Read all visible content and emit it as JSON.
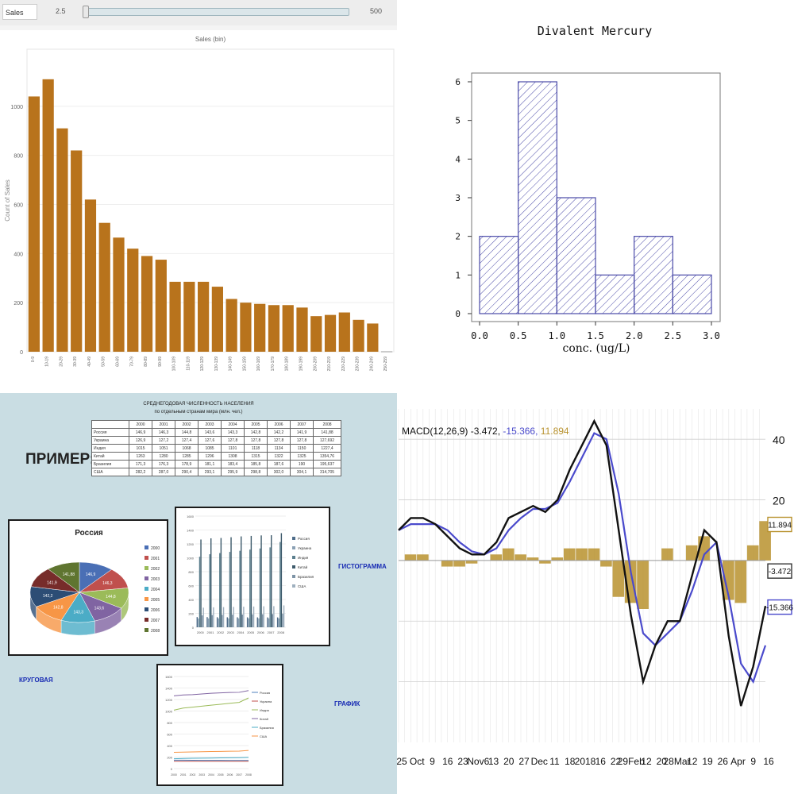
{
  "histogram_toolbar": {
    "field_value": "Sales",
    "range_min": "2.5",
    "range_max": "500"
  },
  "q3": {
    "title_line1": "СРЕДНЕГОДОВАЯ ЧИСЛЕННОСТЬ НАСЕЛЕНИЯ",
    "title_line2": "по отдельным странам мира (млн. чел.)",
    "primer": "ПРИМЕР:",
    "label_histogram": "ГИСТОГРАММА",
    "label_pie": "КРУГОВАЯ",
    "label_graph": "ГРАФИК",
    "table": {
      "header": [
        "",
        "2000",
        "2001",
        "2002",
        "2003",
        "2004",
        "2005",
        "2006",
        "2007",
        "2008"
      ],
      "rows": [
        [
          "Россия",
          "146,9",
          "146,3",
          "144,8",
          "143,6",
          "143,3",
          "142,8",
          "142,2",
          "141,9",
          "141,88"
        ],
        [
          "Украина",
          "126,9",
          "127,2",
          "127,4",
          "127,6",
          "127,8",
          "127,8",
          "127,8",
          "127,8",
          "127,692"
        ],
        [
          "Индия",
          "1015",
          "1051",
          "1068",
          "1085",
          "1101",
          "1118",
          "1134",
          "1150",
          "1227,4"
        ],
        [
          "Китай",
          "1263",
          "1280",
          "1285",
          "1296",
          "1308",
          "1315",
          "1322",
          "1325",
          "1354,76"
        ],
        [
          "Бразилия",
          "171,3",
          "176,3",
          "178,9",
          "181,1",
          "183,4",
          "185,8",
          "187,6",
          "190",
          "195,637"
        ],
        [
          "США",
          "282,2",
          "287,0",
          "290,4",
          "293,1",
          "295,9",
          "298,8",
          "302,0",
          "304,1",
          "314,705"
        ]
      ]
    }
  },
  "chart_data": [
    {
      "type": "bar",
      "title": "Sales (bin)",
      "xlabel": "",
      "ylabel": "Count of Sales",
      "ylim": [
        0,
        1200
      ],
      "yticks": [
        0,
        200,
        400,
        600,
        800,
        1000
      ],
      "categories": [
        "0-9",
        "10-19",
        "20-29",
        "30-39",
        "40-49",
        "50-59",
        "60-69",
        "70-79",
        "80-89",
        "90-99",
        "100-109",
        "110-119",
        "120-129",
        "130-139",
        "140-149",
        "150-159",
        "160-169",
        "170-179",
        "180-189",
        "190-199",
        "200-209",
        "210-219",
        "220-229",
        "230-239",
        "240-249",
        "250-259"
      ],
      "values": [
        1040,
        1110,
        910,
        820,
        620,
        525,
        465,
        420,
        390,
        375,
        285,
        285,
        285,
        265,
        215,
        200,
        195,
        190,
        190,
        180,
        145,
        150,
        160,
        130,
        115,
        0
      ],
      "color": "#b8731c"
    },
    {
      "type": "bar",
      "title": "Divalent Mercury",
      "xlabel": "conc. (ug/L)",
      "ylabel": "",
      "bin_edges": [
        0.0,
        0.5,
        1.0,
        1.5,
        2.0,
        2.5,
        3.0
      ],
      "values": [
        2,
        6,
        3,
        1,
        2,
        1
      ],
      "xticks": [
        "0.0",
        "0.5",
        "1.0",
        "1.5",
        "2.0",
        "2.5",
        "3.0"
      ],
      "yticks": [
        "0",
        "1",
        "2",
        "3",
        "4",
        "5",
        "6"
      ],
      "ylim": [
        0,
        6.4
      ],
      "color": "#3b3b9b"
    },
    {
      "type": "pie",
      "title": "Россия",
      "categories": [
        "2000",
        "2001",
        "2002",
        "2003",
        "2004",
        "2005",
        "2006",
        "2007",
        "2008"
      ],
      "values": [
        146.9,
        146.3,
        144.8,
        143.6,
        143.3,
        142.8,
        142.2,
        141.9,
        141.88
      ],
      "labels": [
        "146,9",
        "146,3",
        "144,8",
        "143,6",
        "143,3",
        "142,8",
        "142,2",
        "141,9",
        "141,88"
      ],
      "colors": [
        "#4a6fb5",
        "#c0504d",
        "#9bbb59",
        "#8064a2",
        "#4bacc6",
        "#f79646",
        "#2c4d75",
        "#772c2a",
        "#5f7530"
      ]
    },
    {
      "type": "bar",
      "categories": [
        "2000",
        "2001",
        "2002",
        "2003",
        "2004",
        "2005",
        "2006",
        "2007",
        "2008"
      ],
      "series": [
        {
          "name": "Россия",
          "values": [
            146.9,
            146.3,
            144.8,
            143.6,
            143.3,
            142.8,
            142.2,
            141.9,
            141.88
          ]
        },
        {
          "name": "Украина",
          "values": [
            126.9,
            127.2,
            127.4,
            127.6,
            127.8,
            127.8,
            127.8,
            127.8,
            127.692
          ]
        },
        {
          "name": "Индия",
          "values": [
            1015,
            1051,
            1068,
            1085,
            1101,
            1118,
            1134,
            1150,
            1227.4
          ]
        },
        {
          "name": "Китай",
          "values": [
            1263,
            1280,
            1285,
            1296,
            1308,
            1315,
            1322,
            1325,
            1354.76
          ]
        },
        {
          "name": "Бразилия",
          "values": [
            171.3,
            176.3,
            178.9,
            181.1,
            183.4,
            185.8,
            187.6,
            190,
            195.637
          ]
        },
        {
          "name": "США",
          "values": [
            282.2,
            287.0,
            290.4,
            293.1,
            295.9,
            298.8,
            302.0,
            304.1,
            314.705
          ]
        }
      ],
      "ylim": [
        0,
        1600
      ],
      "yticks": [
        "0",
        "200",
        "400",
        "600",
        "800",
        "1000",
        "1200",
        "1400",
        "1600"
      ],
      "colors": [
        "#4f6d8a",
        "#8aa0b4",
        "#5b7f8e",
        "#3d5a6b",
        "#7d93a6",
        "#9fb0bf"
      ]
    },
    {
      "type": "line",
      "categories": [
        "2000",
        "2001",
        "2002",
        "2003",
        "2004",
        "2005",
        "2006",
        "2007",
        "2008"
      ],
      "series_ref": "same as bar chart above",
      "ylim": [
        0,
        1600
      ],
      "yticks": [
        "0",
        "200",
        "400",
        "600",
        "800",
        "1000",
        "1200",
        "1400",
        "1600"
      ],
      "colors": [
        "#4f81bd",
        "#c0504d",
        "#9bbb59",
        "#8064a2",
        "#4bacc6",
        "#f79646"
      ]
    },
    {
      "type": "line",
      "title": "MACD(12,26,9) -3.472, -15.366, 11.894",
      "legend_text": "MACD(12,26,9)",
      "legend_values": [
        "-3.472",
        "-15.366",
        "11.894"
      ],
      "ylim": [
        -60,
        50
      ],
      "yticks": [
        "40",
        "20"
      ],
      "right_labels": [
        "11.894",
        "-3.472",
        "-15.366"
      ],
      "x_labels": [
        "25",
        "Oct",
        "9",
        "16",
        "23",
        "Nov6",
        "13",
        "20",
        "27",
        "Dec",
        "11",
        "18",
        "2018",
        "16",
        "22",
        "29Feb",
        "12",
        "20",
        "28Mar",
        "12",
        "19",
        "26",
        "Apr",
        "9",
        "16"
      ],
      "macd": [
        10,
        14,
        14,
        12,
        8,
        4,
        2,
        2,
        6,
        14,
        16,
        18,
        16,
        20,
        30,
        38,
        46,
        38,
        10,
        -18,
        -40,
        -28,
        -20,
        -20,
        -5,
        10,
        6,
        -25,
        -48,
        -35,
        -15
      ],
      "signal": [
        10,
        12,
        12,
        12,
        10,
        6,
        3,
        2,
        4,
        10,
        14,
        17,
        17,
        19,
        26,
        34,
        42,
        40,
        22,
        -4,
        -24,
        -28,
        -24,
        -20,
        -10,
        2,
        6,
        -12,
        -34,
        -40,
        -28
      ],
      "histogram": [
        0,
        2,
        2,
        0,
        -2,
        -2,
        -1,
        0,
        2,
        4,
        2,
        1,
        -1,
        1,
        4,
        4,
        4,
        -2,
        -12,
        -14,
        -16,
        0,
        4,
        0,
        5,
        8,
        0,
        -13,
        -14,
        5,
        13
      ],
      "colors": {
        "macd": "#111111",
        "signal": "#4a4acc",
        "histogram": "#b8922e"
      }
    }
  ]
}
